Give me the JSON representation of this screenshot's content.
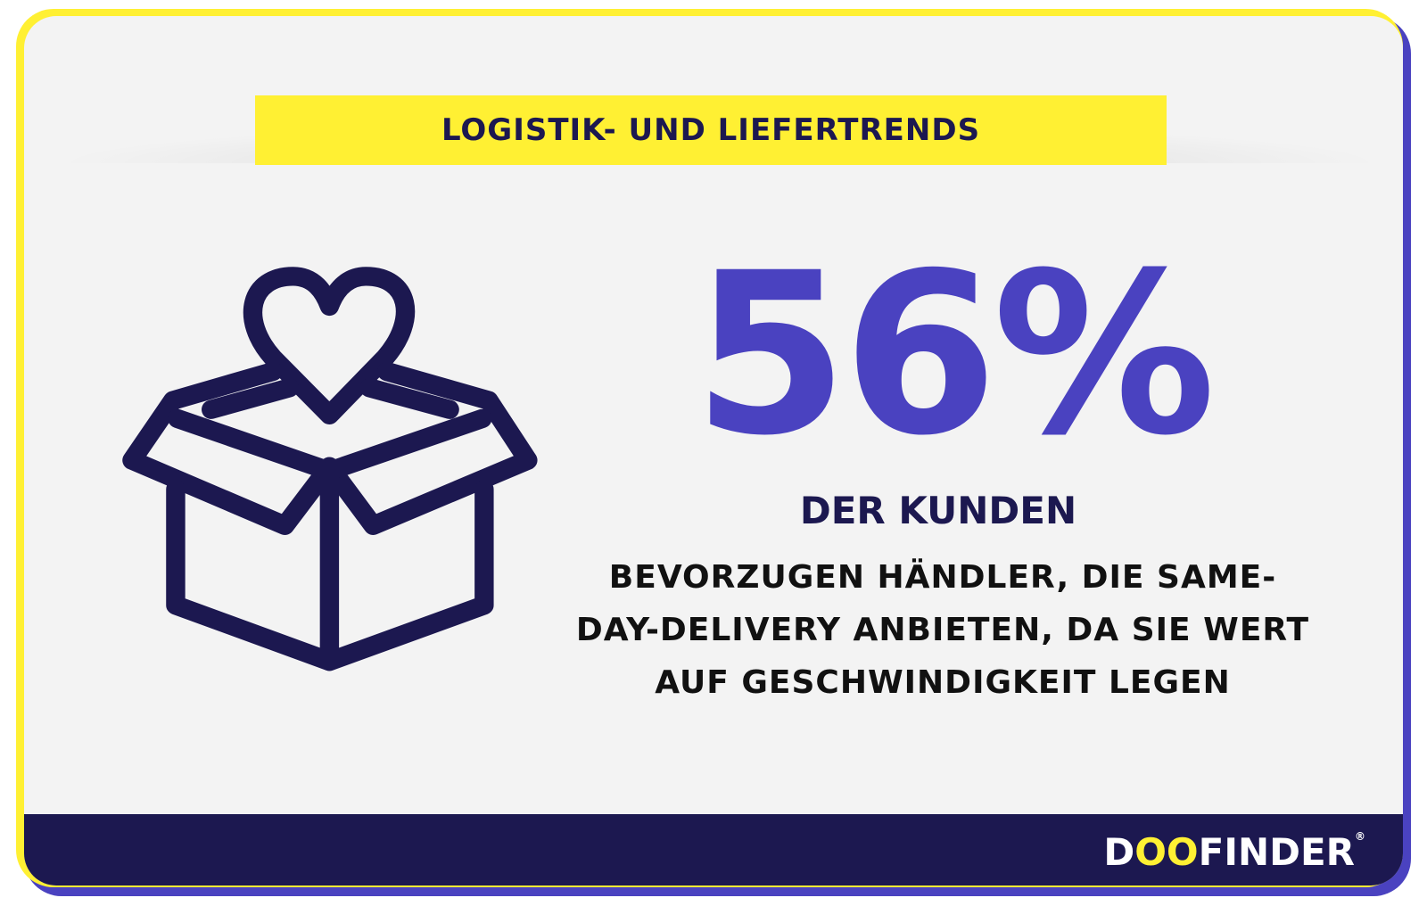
{
  "header": {
    "title": "LOGISTIK- UND LIEFERTRENDS"
  },
  "stat": {
    "value": "56%",
    "subject": "DER KUNDEN",
    "lines": [
      "BEVORZUGEN HÄNDLER, DIE SAME-",
      "DAY-DELIVERY ANBIETEN, DA SIE WERT",
      "AUF GESCHWINDIGKEIT LEGEN"
    ]
  },
  "icon": "gift-box-heart-icon",
  "footer": {
    "logo": {
      "d": "D",
      "oo": "OO",
      "rest": "FINDER",
      "reg": "®"
    }
  },
  "colors": {
    "yellow": "#fff033",
    "purple": "#4a42c0",
    "navy": "#1c1850",
    "background": "#f3f3f3"
  }
}
